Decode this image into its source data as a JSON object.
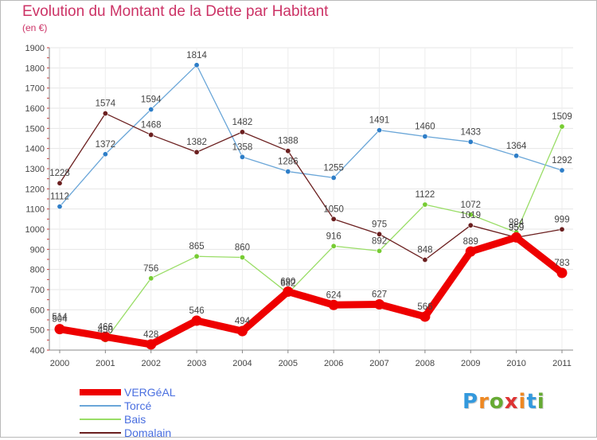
{
  "header": {
    "title": "Evolution du Montant de la Dette par Habitant",
    "unit": "(en €)"
  },
  "chart_data": {
    "type": "line",
    "title": "Evolution du Montant de la Dette par Habitant",
    "ylabel": "(en €)",
    "xlabel": "",
    "x": [
      "2000",
      "2001",
      "2002",
      "2003",
      "2004",
      "2005",
      "2006",
      "2007",
      "2008",
      "2009",
      "2010",
      "2011"
    ],
    "ylim": [
      400,
      1900
    ],
    "yticks": [
      400,
      500,
      600,
      700,
      800,
      900,
      1000,
      1100,
      1200,
      1300,
      1400,
      1500,
      1600,
      1700,
      1800,
      1900
    ],
    "grid": true,
    "legend_position": "bottom-left",
    "series": [
      {
        "name": "Torcé",
        "color": "#6aa6d8",
        "marker": "#2e7ec8",
        "width": 1.3,
        "values": [
          1112,
          1372,
          1594,
          1814,
          1358,
          1286,
          1255,
          1491,
          1460,
          1433,
          1364,
          1292
        ]
      },
      {
        "name": "Bais",
        "color": "#99dd66",
        "marker": "#77cc33",
        "width": 1.3,
        "values": [
          514,
          450,
          756,
          865,
          860,
          682,
          916,
          892,
          1122,
          1072,
          984,
          1509
        ],
        "labels": [
          "514",
          "450",
          "756",
          "865",
          "860",
          "682",
          "916",
          "892",
          "1122",
          "1072",
          "984",
          "1509"
        ]
      },
      {
        "name": "Domalain",
        "color": "#6b1f1f",
        "marker": "#6b1f1f",
        "width": 1.3,
        "values": [
          1228,
          1574,
          1468,
          1382,
          1482,
          1388,
          1050,
          975,
          848,
          1019,
          959,
          999
        ]
      },
      {
        "name": "VERGéAL",
        "color": "#ee0000",
        "marker": "#ee0000",
        "width": 9,
        "values": [
          504,
          466,
          428,
          546,
          494,
          690,
          624,
          627,
          566,
          889,
          959,
          783
        ]
      }
    ]
  },
  "legend": [
    {
      "name": "VERGéAL",
      "color": "#ee0000",
      "width": 8
    },
    {
      "name": "Torcé",
      "color": "#6aa6d8",
      "width": 1.5
    },
    {
      "name": "Bais",
      "color": "#99dd66",
      "width": 1.5
    },
    {
      "name": "Domalain",
      "color": "#6b1f1f",
      "width": 1.5
    }
  ],
  "logo": {
    "letters": [
      "P",
      "r",
      "o",
      "x",
      "i",
      "t",
      "i"
    ],
    "colors": [
      "#3399dd",
      "#ee8822",
      "#66aa33",
      "#dd3333",
      "#ee8822",
      "#3399dd",
      "#66aa33"
    ]
  }
}
